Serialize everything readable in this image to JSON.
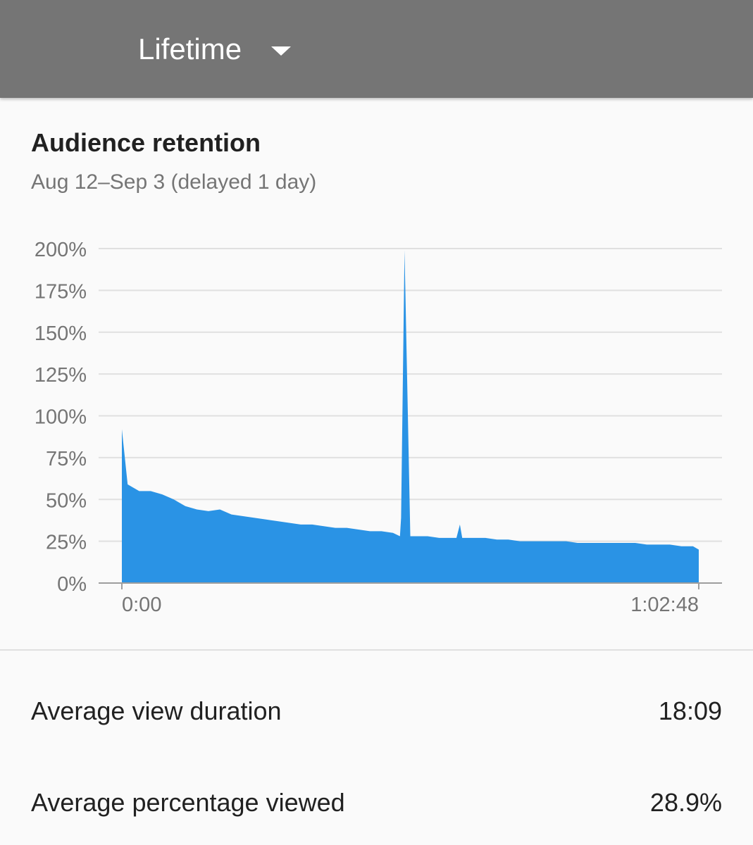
{
  "header": {
    "period_label": "Lifetime",
    "dropdown_icon": "caret-down-icon",
    "background": "#757575"
  },
  "card": {
    "title": "Audience retention",
    "subtitle": "Aug 12–Sep 3 (delayed 1 day)"
  },
  "chart_data": {
    "type": "area",
    "title": "",
    "xlabel": "",
    "ylabel": "",
    "ylim": [
      0,
      200
    ],
    "xlim_seconds": [
      0,
      3768
    ],
    "y_ticks": [
      "0%",
      "25%",
      "50%",
      "75%",
      "100%",
      "125%",
      "150%",
      "175%",
      "200%"
    ],
    "x_ticks": [
      "0:00",
      "1:02:48"
    ],
    "grid": true,
    "color": "#2a93e5",
    "series": [
      {
        "x": [
          0,
          1,
          3,
          5,
          7,
          9,
          11,
          13,
          15,
          17,
          19,
          21,
          23,
          25,
          27,
          29,
          31,
          33,
          35,
          37,
          39,
          41,
          43,
          45,
          47,
          48.2,
          48.4,
          49,
          50,
          51,
          53,
          55,
          57,
          58,
          58.6,
          59,
          61,
          63,
          65,
          67,
          69,
          71,
          73,
          75,
          77,
          79,
          81,
          83,
          85,
          87,
          89,
          91,
          93,
          95,
          97,
          99,
          100
        ],
        "y": [
          92,
          59,
          55,
          55,
          53,
          50,
          46,
          44,
          43,
          44,
          41,
          40,
          39,
          38,
          37,
          36,
          35,
          35,
          34,
          33,
          33,
          32,
          31,
          31,
          30,
          28,
          39,
          199,
          28,
          28,
          28,
          27,
          27,
          27,
          35,
          27,
          27,
          27,
          26,
          26,
          25,
          25,
          25,
          25,
          25,
          24,
          24,
          24,
          24,
          24,
          24,
          23,
          23,
          23,
          22,
          22,
          20
        ]
      }
    ]
  },
  "metrics": [
    {
      "label": "Average view duration",
      "value": "18:09"
    },
    {
      "label": "Average percentage viewed",
      "value": "28.9%"
    }
  ]
}
